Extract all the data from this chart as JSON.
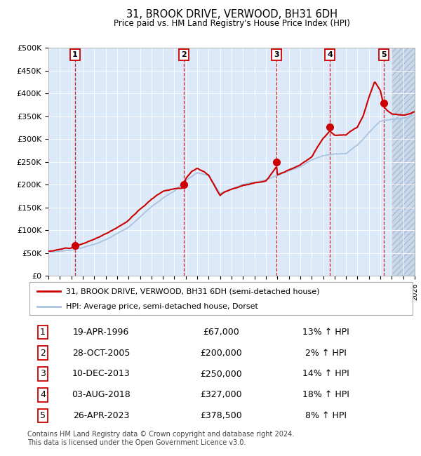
{
  "title": "31, BROOK DRIVE, VERWOOD, BH31 6DH",
  "subtitle": "Price paid vs. HM Land Registry's House Price Index (HPI)",
  "ylim": [
    0,
    500000
  ],
  "yticks": [
    0,
    50000,
    100000,
    150000,
    200000,
    250000,
    300000,
    350000,
    400000,
    450000,
    500000
  ],
  "ytick_labels": [
    "£0",
    "£50K",
    "£100K",
    "£150K",
    "£200K",
    "£250K",
    "£300K",
    "£350K",
    "£400K",
    "£450K",
    "£500K"
  ],
  "xlim_start": 1994,
  "xlim_end": 2026,
  "hatch_start": 2024,
  "plot_bg": "#dce9f8",
  "hatch_bg": "#c8d8ec",
  "hpi_color": "#aac4e0",
  "price_color": "#cc0000",
  "vline_color": "#cc0000",
  "grid_color": "#ffffff",
  "legend_line1": "31, BROOK DRIVE, VERWOOD, BH31 6DH (semi-detached house)",
  "legend_line2": "HPI: Average price, semi-detached house, Dorset",
  "sales": [
    {
      "num": 1,
      "date_label": "19-APR-1996",
      "price": 67000,
      "price_label": "£67,000",
      "hpi_pct": "13% ↑ HPI",
      "year": 1996.3
    },
    {
      "num": 2,
      "date_label": "28-OCT-2005",
      "price": 200000,
      "price_label": "£200,000",
      "hpi_pct": "2% ↑ HPI",
      "year": 2005.83
    },
    {
      "num": 3,
      "date_label": "10-DEC-2013",
      "price": 250000,
      "price_label": "£250,000",
      "hpi_pct": "14% ↑ HPI",
      "year": 2013.94
    },
    {
      "num": 4,
      "date_label": "03-AUG-2018",
      "price": 327000,
      "price_label": "£327,000",
      "hpi_pct": "18% ↑ HPI",
      "year": 2018.58
    },
    {
      "num": 5,
      "date_label": "26-APR-2023",
      "price": 378500,
      "price_label": "£378,500",
      "hpi_pct": "8% ↑ HPI",
      "year": 2023.32
    }
  ],
  "footnote": "Contains HM Land Registry data © Crown copyright and database right 2024.\nThis data is licensed under the Open Government Licence v3.0."
}
